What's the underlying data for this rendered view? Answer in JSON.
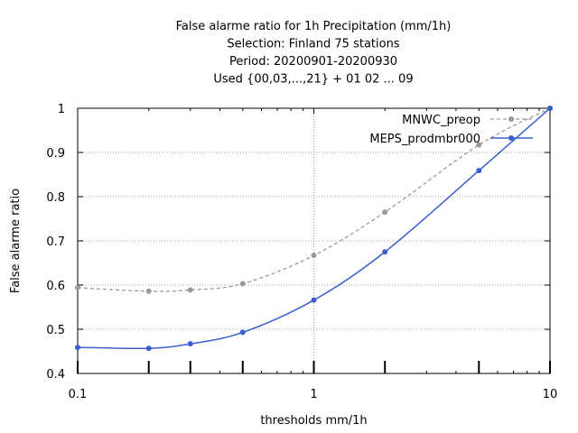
{
  "chart_data": {
    "type": "line",
    "title_lines": [
      "False alarme ratio  for 1h Precipitation (mm/1h)",
      "Selection: Finland     75 stations",
      "Period: 20200901-20200930",
      "Used {00,03,...,21} + 01 02 ... 09"
    ],
    "xlabel": "thresholds mm/1h",
    "ylabel": "False alarme ratio",
    "xscale": "log",
    "xlim": [
      0.1,
      10
    ],
    "ylim": [
      0.4,
      1.0
    ],
    "xticks": [
      0.1,
      1,
      10
    ],
    "xtick_labels": [
      "0.1",
      "1",
      "10"
    ],
    "yticks": [
      0.4,
      0.5,
      0.6,
      0.7,
      0.8,
      0.9,
      1.0
    ],
    "ytick_labels": [
      "0.4",
      "0.5",
      "0.6",
      "0.7",
      "0.8",
      "0.9",
      "1"
    ],
    "grid": true,
    "legend_position": "top-right",
    "threshold_marks": [
      0.1,
      0.2,
      0.3,
      0.5,
      1,
      2,
      5,
      10
    ],
    "series": [
      {
        "name": "MNWC_preop",
        "color": "#999999",
        "style": "dashed",
        "x": [
          0.1,
          0.2,
          0.3,
          0.5,
          1,
          2,
          5,
          10
        ],
        "y": [
          0.594,
          0.586,
          0.589,
          0.603,
          0.667,
          0.765,
          0.917,
          1.0
        ]
      },
      {
        "name": "MEPS_prodmbr000",
        "color": "#3a5fcd",
        "style": "solid",
        "x": [
          0.1,
          0.2,
          0.3,
          0.5,
          1,
          2,
          5,
          10
        ],
        "y": [
          0.459,
          0.457,
          0.467,
          0.493,
          0.566,
          0.675,
          0.859,
          1.0
        ]
      }
    ]
  }
}
